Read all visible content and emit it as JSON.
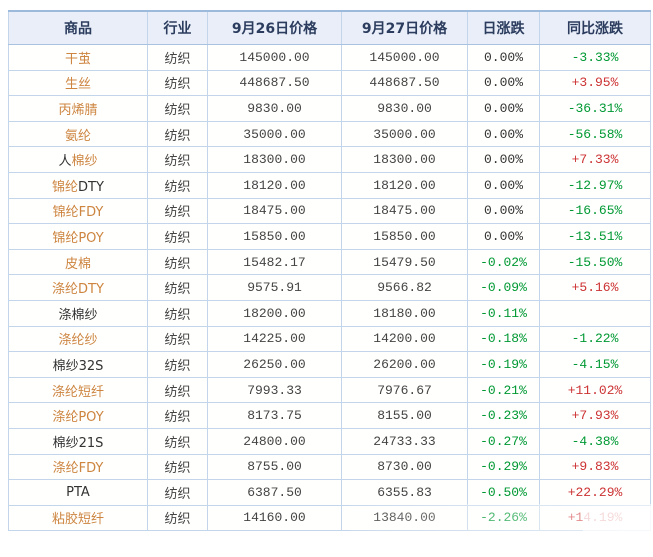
{
  "colors": {
    "orange": "#cd8540",
    "black": "#333333",
    "green": "#009933",
    "red": "#cc3333",
    "header_text": "#2b3c5e",
    "header_bg": "#e9eef8",
    "border": "#c3d5ea",
    "outer_border": "#9db9dc"
  },
  "table": {
    "headers": [
      {
        "key": "commodity",
        "label": "商品"
      },
      {
        "key": "industry",
        "label": "行业"
      },
      {
        "key": "price-0926",
        "label": "9月26日价格"
      },
      {
        "key": "price-0927",
        "label": "9月27日价格"
      },
      {
        "key": "daily-change",
        "label": "日涨跌"
      },
      {
        "key": "yoy-change",
        "label": "同比涨跌"
      }
    ],
    "rows": [
      {
        "name": [
          {
            "t": "干茧",
            "c": "orange"
          }
        ],
        "industry": "纺织",
        "p1": "145000.00",
        "p2": "145000.00",
        "daily": {
          "t": "0.00%",
          "c": "black"
        },
        "yoy": {
          "t": "-3.33%",
          "c": "green"
        }
      },
      {
        "name": [
          {
            "t": "生丝",
            "c": "orange"
          }
        ],
        "industry": "纺织",
        "p1": "448687.50",
        "p2": "448687.50",
        "daily": {
          "t": "0.00%",
          "c": "black"
        },
        "yoy": {
          "t": "+3.95%",
          "c": "red"
        }
      },
      {
        "name": [
          {
            "t": "丙烯腈",
            "c": "orange"
          }
        ],
        "industry": "纺织",
        "p1": "9830.00",
        "p2": "9830.00",
        "daily": {
          "t": "0.00%",
          "c": "black"
        },
        "yoy": {
          "t": "-36.31%",
          "c": "green"
        }
      },
      {
        "name": [
          {
            "t": "氨纶",
            "c": "orange"
          }
        ],
        "industry": "纺织",
        "p1": "35000.00",
        "p2": "35000.00",
        "daily": {
          "t": "0.00%",
          "c": "black"
        },
        "yoy": {
          "t": "-56.58%",
          "c": "green"
        }
      },
      {
        "name": [
          {
            "t": "人",
            "c": "black"
          },
          {
            "t": "棉纱",
            "c": "orange"
          }
        ],
        "industry": "纺织",
        "p1": "18300.00",
        "p2": "18300.00",
        "daily": {
          "t": "0.00%",
          "c": "black"
        },
        "yoy": {
          "t": "+7.33%",
          "c": "red"
        }
      },
      {
        "name": [
          {
            "t": "锦纶",
            "c": "orange"
          },
          {
            "t": "DTY",
            "c": "black"
          }
        ],
        "industry": "纺织",
        "p1": "18120.00",
        "p2": "18120.00",
        "daily": {
          "t": "0.00%",
          "c": "black"
        },
        "yoy": {
          "t": "-12.97%",
          "c": "green"
        }
      },
      {
        "name": [
          {
            "t": "锦纶FDY",
            "c": "orange"
          }
        ],
        "industry": "纺织",
        "p1": "18475.00",
        "p2": "18475.00",
        "daily": {
          "t": "0.00%",
          "c": "black"
        },
        "yoy": {
          "t": "-16.65%",
          "c": "green"
        }
      },
      {
        "name": [
          {
            "t": "锦纶POY",
            "c": "orange"
          }
        ],
        "industry": "纺织",
        "p1": "15850.00",
        "p2": "15850.00",
        "daily": {
          "t": "0.00%",
          "c": "black"
        },
        "yoy": {
          "t": "-13.51%",
          "c": "green"
        }
      },
      {
        "name": [
          {
            "t": "皮棉",
            "c": "orange"
          }
        ],
        "industry": "纺织",
        "p1": "15482.17",
        "p2": "15479.50",
        "daily": {
          "t": "-0.02%",
          "c": "green"
        },
        "yoy": {
          "t": "-15.50%",
          "c": "green"
        }
      },
      {
        "name": [
          {
            "t": "涤纶DTY",
            "c": "orange"
          }
        ],
        "industry": "纺织",
        "p1": "9575.91",
        "p2": "9566.82",
        "daily": {
          "t": "-0.09%",
          "c": "green"
        },
        "yoy": {
          "t": "+5.16%",
          "c": "red"
        }
      },
      {
        "name": [
          {
            "t": "涤棉纱",
            "c": "black"
          }
        ],
        "industry": "纺织",
        "p1": "18200.00",
        "p2": "18180.00",
        "daily": {
          "t": "-0.11%",
          "c": "green"
        },
        "yoy": {
          "t": "",
          "c": "black"
        }
      },
      {
        "name": [
          {
            "t": "涤纶纱",
            "c": "orange"
          }
        ],
        "industry": "纺织",
        "p1": "14225.00",
        "p2": "14200.00",
        "daily": {
          "t": "-0.18%",
          "c": "green"
        },
        "yoy": {
          "t": "-1.22%",
          "c": "green"
        }
      },
      {
        "name": [
          {
            "t": "棉纱32S",
            "c": "black"
          }
        ],
        "industry": "纺织",
        "p1": "26250.00",
        "p2": "26200.00",
        "daily": {
          "t": "-0.19%",
          "c": "green"
        },
        "yoy": {
          "t": "-4.15%",
          "c": "green"
        }
      },
      {
        "name": [
          {
            "t": "涤纶短纤",
            "c": "orange"
          }
        ],
        "industry": "纺织",
        "p1": "7993.33",
        "p2": "7976.67",
        "daily": {
          "t": "-0.21%",
          "c": "green"
        },
        "yoy": {
          "t": "+11.02%",
          "c": "red"
        }
      },
      {
        "name": [
          {
            "t": "涤纶POY",
            "c": "orange"
          }
        ],
        "industry": "纺织",
        "p1": "8173.75",
        "p2": "8155.00",
        "daily": {
          "t": "-0.23%",
          "c": "green"
        },
        "yoy": {
          "t": "+7.93%",
          "c": "red"
        }
      },
      {
        "name": [
          {
            "t": "棉纱21S",
            "c": "black"
          }
        ],
        "industry": "纺织",
        "p1": "24800.00",
        "p2": "24733.33",
        "daily": {
          "t": "-0.27%",
          "c": "green"
        },
        "yoy": {
          "t": "-4.38%",
          "c": "green"
        }
      },
      {
        "name": [
          {
            "t": "涤纶FDY",
            "c": "orange"
          }
        ],
        "industry": "纺织",
        "p1": "8755.00",
        "p2": "8730.00",
        "daily": {
          "t": "-0.29%",
          "c": "green"
        },
        "yoy": {
          "t": "+9.83%",
          "c": "red"
        }
      },
      {
        "name": [
          {
            "t": "PTA",
            "c": "black"
          }
        ],
        "industry": "纺织",
        "p1": "6387.50",
        "p2": "6355.83",
        "daily": {
          "t": "-0.50%",
          "c": "green"
        },
        "yoy": {
          "t": "+22.29%",
          "c": "red"
        }
      },
      {
        "name": [
          {
            "t": "粘胶短纤",
            "c": "orange"
          }
        ],
        "industry": "纺织",
        "p1": "14160.00",
        "p2": "13840.00",
        "daily": {
          "t": "-2.26%",
          "c": "green"
        },
        "yoy": {
          "t": "+14.19%",
          "c": "red"
        }
      }
    ]
  }
}
